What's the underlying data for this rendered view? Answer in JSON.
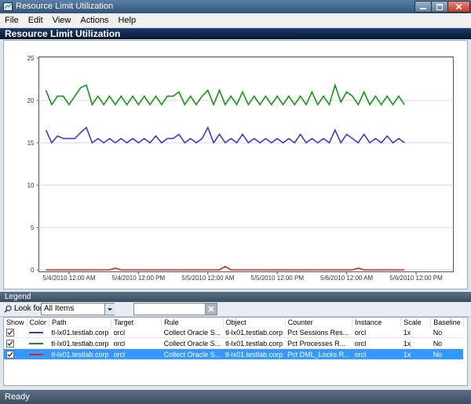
{
  "window": {
    "title": "Resource Limit Utilization"
  },
  "menu": [
    "File",
    "Edit",
    "View",
    "Actions",
    "Help"
  ],
  "chart_data": {
    "type": "line",
    "title": "Resource Limit Utilization",
    "categories": [
      null,
      null,
      null,
      null,
      "5/4/2010 12:00 AM",
      null,
      null,
      null,
      null,
      null,
      null,
      null,
      null,
      null,
      null,
      null,
      "5/4/2010 12:00 PM",
      null,
      null,
      null,
      null,
      null,
      null,
      null,
      null,
      null,
      null,
      null,
      "5/5/2010 12:00 AM",
      null,
      null,
      null,
      null,
      null,
      null,
      null,
      null,
      null,
      null,
      null,
      "5/5/2010 12:00 PM",
      null,
      null,
      null,
      null,
      null,
      null,
      null,
      null,
      null,
      null,
      null,
      "5/6/2010 12:00 AM",
      null,
      null,
      null,
      null,
      null,
      null,
      null,
      null,
      null,
      null,
      null,
      "5/6/2010 12:00 PM"
    ],
    "series": [
      {
        "name": "Pct Sessions Res...",
        "color": "#3a3ad4",
        "values": [
          16.5,
          15,
          15.8,
          15.5,
          15.5,
          15.5,
          16.2,
          16.8,
          15,
          15.5,
          15,
          15.5,
          15,
          15.5,
          15,
          15.5,
          15,
          15.5,
          15,
          15.8,
          15,
          15.5,
          15.5,
          16,
          15,
          15.5,
          15,
          15.5,
          16.8,
          15,
          16,
          15,
          15.5,
          15,
          16,
          15,
          15.5,
          15,
          15.5,
          15,
          15.5,
          15,
          15.5,
          15,
          16,
          15,
          15.5,
          15,
          15.5,
          15,
          16.5,
          15,
          16,
          15.5,
          15,
          16,
          15,
          15.5,
          15,
          15.8,
          15,
          15.5,
          15,
          null,
          null
        ]
      },
      {
        "name": "Pct Processes R...",
        "color": "#139613",
        "values": [
          21.2,
          19.5,
          20.5,
          20.5,
          19.5,
          20.5,
          21.5,
          21.8,
          19.5,
          20.5,
          19.5,
          20.5,
          19.5,
          20.5,
          19.5,
          20.5,
          19.5,
          20.5,
          19.5,
          20.5,
          19.5,
          20.5,
          20.5,
          21,
          19.5,
          20.5,
          19.5,
          20.5,
          21.2,
          19.5,
          21.2,
          19.5,
          20.5,
          19.5,
          21,
          19.5,
          20.5,
          19.5,
          20.5,
          19.5,
          20.5,
          19.5,
          20.5,
          19.5,
          20.5,
          19.5,
          21,
          19.5,
          20.5,
          19.5,
          21.8,
          19.8,
          21,
          20.5,
          19.5,
          21,
          19.5,
          20.5,
          19.5,
          20.5,
          19.5,
          20.5,
          19.5,
          null,
          null
        ]
      },
      {
        "name": "Pct DML_Locks R...",
        "color": "#e02020",
        "values": [
          0,
          0,
          0,
          0,
          0,
          0,
          0,
          0,
          0,
          0,
          0,
          0,
          0.2,
          0,
          0,
          0,
          0,
          0,
          0,
          0,
          0,
          0,
          0,
          0,
          0,
          0,
          0,
          0,
          0,
          0,
          0,
          0.4,
          0,
          0,
          0,
          0,
          0,
          0,
          0,
          0,
          0,
          0,
          0,
          0,
          0,
          0,
          0,
          0,
          0,
          0,
          0,
          0,
          0,
          0,
          0.2,
          0,
          0,
          0,
          0,
          0,
          0,
          0,
          0,
          null,
          null
        ]
      }
    ],
    "ylim": [
      0,
      25
    ],
    "yticks": [
      0,
      5,
      10,
      15,
      20,
      25
    ],
    "grid": true
  },
  "legend": {
    "title": "Legend",
    "look_for_label": "Look for:",
    "filter": "All Items",
    "columns": [
      "Show",
      "Color",
      "Path",
      "Target",
      "Rule",
      "Object",
      "Counter",
      "Instance",
      "Scale",
      "Baseline"
    ],
    "selected_row": 2,
    "rows": [
      {
        "show": true,
        "path": "tl-lx01.testlab.corp",
        "target": "orcl",
        "rule": "Collect Oracle S...",
        "object": "tl-lx01.testlab.corp",
        "instance": "orcl",
        "scale": "1x",
        "baseline": "No"
      },
      {
        "show": true,
        "path": "tl-lx01.testlab.corp",
        "target": "orcl",
        "rule": "Collect Oracle S...",
        "object": "tl-lx01.testlab.corp",
        "instance": "orcl",
        "scale": "1x",
        "baseline": "No"
      },
      {
        "show": true,
        "path": "tl-lx01.testlab.corp",
        "target": "orcl",
        "rule": "Collect Oracle S...",
        "object": "tl-lx01.testlab.corp",
        "instance": "orcl",
        "scale": "1x",
        "baseline": "No"
      }
    ]
  },
  "status": "Ready"
}
